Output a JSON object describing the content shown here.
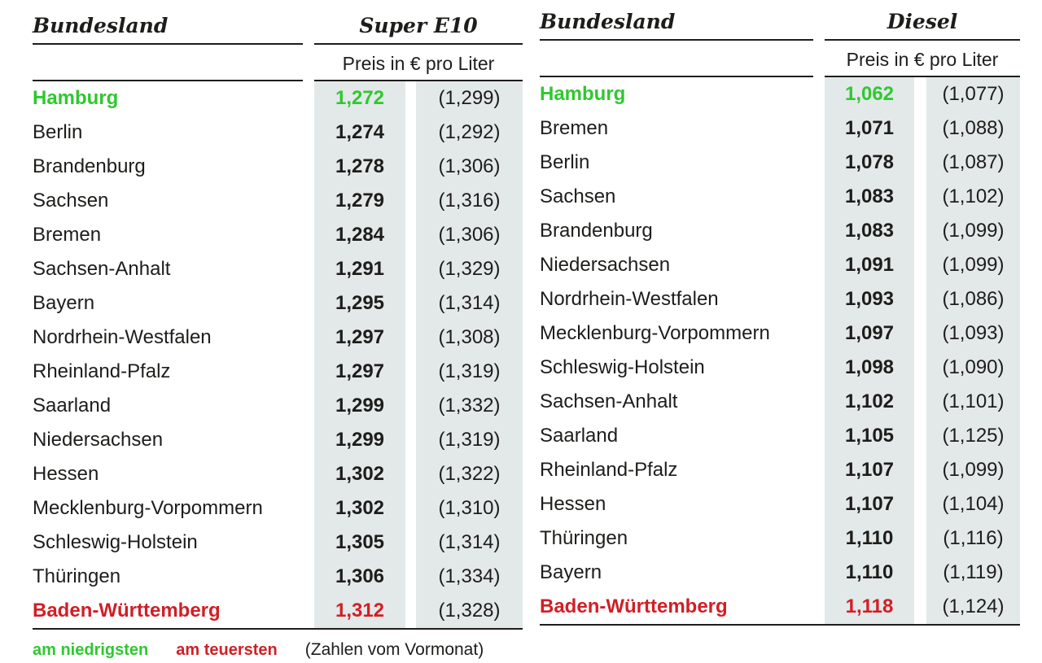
{
  "colors": {
    "lowest": "#2fc82f",
    "highest": "#d01f26",
    "stripe_bg": "#e3e9e9",
    "text": "#1d1d1b"
  },
  "legend": {
    "lowest_label": "am niedrigsten",
    "highest_label": "am teuersten",
    "note": "(Zahlen vom Vormonat)"
  },
  "chart_data": [
    {
      "type": "table",
      "name_header": "Bundesland",
      "fuel_header": "Super E10",
      "unit_header": "Preis in € pro Liter",
      "rows": [
        {
          "state": "Hamburg",
          "price": "1,272",
          "prev_month": "(1,299)",
          "highlight": "lowest"
        },
        {
          "state": "Berlin",
          "price": "1,274",
          "prev_month": "(1,292)"
        },
        {
          "state": "Brandenburg",
          "price": "1,278",
          "prev_month": "(1,306)"
        },
        {
          "state": "Sachsen",
          "price": "1,279",
          "prev_month": "(1,316)"
        },
        {
          "state": "Bremen",
          "price": "1,284",
          "prev_month": "(1,306)"
        },
        {
          "state": "Sachsen-Anhalt",
          "price": "1,291",
          "prev_month": "(1,329)"
        },
        {
          "state": "Bayern",
          "price": "1,295",
          "prev_month": "(1,314)"
        },
        {
          "state": "Nordrhein-Westfalen",
          "price": "1,297",
          "prev_month": "(1,308)"
        },
        {
          "state": "Rheinland-Pfalz",
          "price": "1,297",
          "prev_month": "(1,319)"
        },
        {
          "state": "Saarland",
          "price": "1,299",
          "prev_month": "(1,332)"
        },
        {
          "state": "Niedersachsen",
          "price": "1,299",
          "prev_month": "(1,319)"
        },
        {
          "state": "Hessen",
          "price": "1,302",
          "prev_month": "(1,322)"
        },
        {
          "state": "Mecklenburg-Vorpommern",
          "price": "1,302",
          "prev_month": "(1,310)"
        },
        {
          "state": "Schleswig-Holstein",
          "price": "1,305",
          "prev_month": "(1,314)"
        },
        {
          "state": "Thüringen",
          "price": "1,306",
          "prev_month": "(1,334)"
        },
        {
          "state": "Baden-Württemberg",
          "price": "1,312",
          "prev_month": "(1,328)",
          "highlight": "highest"
        }
      ]
    },
    {
      "type": "table",
      "name_header": "Bundesland",
      "fuel_header": "Diesel",
      "unit_header": "Preis in € pro Liter",
      "rows": [
        {
          "state": "Hamburg",
          "price": "1,062",
          "prev_month": "(1,077)",
          "highlight": "lowest"
        },
        {
          "state": "Bremen",
          "price": "1,071",
          "prev_month": "(1,088)"
        },
        {
          "state": "Berlin",
          "price": "1,078",
          "prev_month": "(1,087)"
        },
        {
          "state": "Sachsen",
          "price": "1,083",
          "prev_month": "(1,102)"
        },
        {
          "state": "Brandenburg",
          "price": "1,083",
          "prev_month": "(1,099)"
        },
        {
          "state": "Niedersachsen",
          "price": "1,091",
          "prev_month": "(1,099)"
        },
        {
          "state": "Nordrhein-Westfalen",
          "price": "1,093",
          "prev_month": "(1,086)"
        },
        {
          "state": "Mecklenburg-Vorpommern",
          "price": "1,097",
          "prev_month": "(1,093)"
        },
        {
          "state": "Schleswig-Holstein",
          "price": "1,098",
          "prev_month": "(1,090)"
        },
        {
          "state": "Sachsen-Anhalt",
          "price": "1,102",
          "prev_month": "(1,101)"
        },
        {
          "state": "Saarland",
          "price": "1,105",
          "prev_month": "(1,125)"
        },
        {
          "state": "Rheinland-Pfalz",
          "price": "1,107",
          "prev_month": "(1,099)"
        },
        {
          "state": "Hessen",
          "price": "1,107",
          "prev_month": "(1,104)"
        },
        {
          "state": "Thüringen",
          "price": "1,110",
          "prev_month": "(1,116)"
        },
        {
          "state": "Bayern",
          "price": "1,110",
          "prev_month": "(1,119)"
        },
        {
          "state": "Baden-Württemberg",
          "price": "1,118",
          "prev_month": "(1,124)",
          "highlight": "highest"
        }
      ]
    }
  ]
}
